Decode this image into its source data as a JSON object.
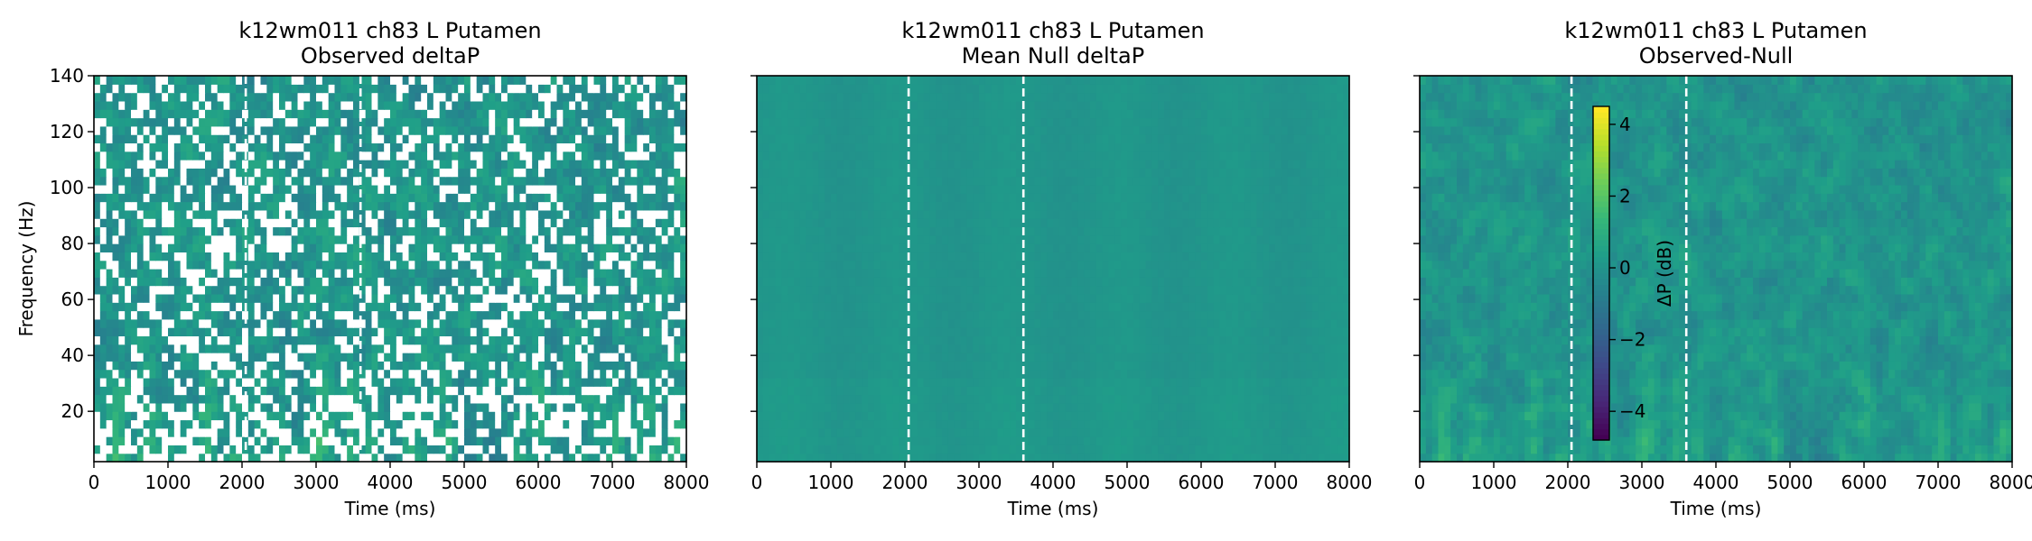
{
  "chart_data": [
    {
      "type": "heatmap",
      "title_line1": "k12wm011 ch83 L Putamen",
      "title_line2": "Observed deltaP",
      "xlabel": "Time (ms)",
      "ylabel": "Frequency (Hz)",
      "xlim": [
        0,
        8000
      ],
      "ylim": [
        2,
        140
      ],
      "xticks": [
        0,
        1000,
        2000,
        3000,
        4000,
        5000,
        6000,
        7000,
        8000
      ],
      "yticks": [
        20,
        40,
        60,
        80,
        100,
        120,
        140
      ],
      "show_yticklabels": true,
      "event_lines_ms": [
        2050,
        3600
      ],
      "colormap": "viridis",
      "clim": [
        -4.8,
        4.5
      ],
      "masked": true
    },
    {
      "type": "heatmap",
      "title_line1": "k12wm011 ch83 L Putamen",
      "title_line2": "Mean Null deltaP",
      "xlabel": "Time (ms)",
      "ylabel": "",
      "xlim": [
        0,
        8000
      ],
      "ylim": [
        2,
        140
      ],
      "xticks": [
        0,
        1000,
        2000,
        3000,
        4000,
        5000,
        6000,
        7000,
        8000
      ],
      "yticks": [
        20,
        40,
        60,
        80,
        100,
        120,
        140
      ],
      "show_yticklabels": false,
      "event_lines_ms": [
        2050,
        3600
      ],
      "colormap": "viridis",
      "clim": [
        -4.8,
        4.5
      ],
      "masked": false
    },
    {
      "type": "heatmap",
      "title_line1": "k12wm011 ch83 L Putamen",
      "title_line2": "Observed-Null",
      "xlabel": "Time (ms)",
      "ylabel": "",
      "xlim": [
        0,
        8000
      ],
      "ylim": [
        2,
        140
      ],
      "xticks": [
        0,
        1000,
        2000,
        3000,
        4000,
        5000,
        6000,
        7000,
        8000
      ],
      "yticks": [
        20,
        40,
        60,
        80,
        100,
        120,
        140
      ],
      "show_yticklabels": false,
      "event_lines_ms": [
        2050,
        3600
      ],
      "colormap": "viridis",
      "clim": [
        -4.8,
        4.5
      ],
      "masked": false,
      "colorbar": {
        "label": "ΔP (dB)",
        "ticks": [
          -4,
          -2,
          0,
          2,
          4
        ]
      }
    }
  ]
}
